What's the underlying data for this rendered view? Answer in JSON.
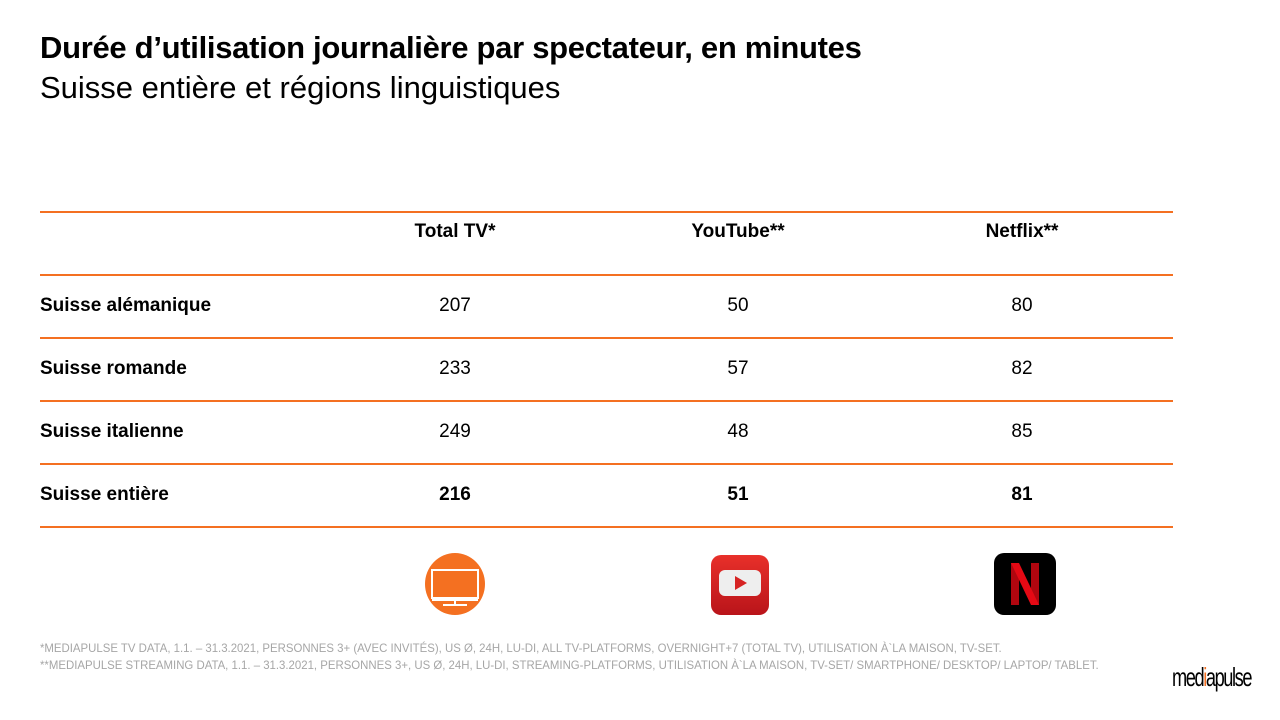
{
  "header": {
    "title": "Durée d’utilisation journalière par spectateur, en minutes",
    "subtitle": "Suisse entière et régions linguistiques"
  },
  "table": {
    "columns": [
      "",
      "Total TV*",
      "YouTube**",
      "Netflix**"
    ],
    "rows": [
      {
        "label": "Suisse alémanique",
        "values": [
          "207",
          "50",
          "80"
        ]
      },
      {
        "label": "Suisse romande",
        "values": [
          "233",
          "57",
          "82"
        ]
      },
      {
        "label": "Suisse italienne",
        "values": [
          "249",
          "48",
          "85"
        ]
      },
      {
        "label": "Suisse entière",
        "values": [
          "216",
          "51",
          "81"
        ],
        "bold": true
      }
    ]
  },
  "icons": [
    "tv-icon",
    "youtube-icon",
    "netflix-icon"
  ],
  "colors": {
    "accent": "#f47021",
    "youtube": "#d62323",
    "netflix": "#e50914"
  },
  "footnotes": [
    "*MEDIAPULSE TV DATA, 1.1. – 31.3.2021, PERSONNES 3+ (AVEC INVITÉS), US Ø, 24H, LU-DI, ALL TV-PLATFORMS, OVERNIGHT+7 (TOTAL TV), UTILISATION À`LA MAISON, TV-SET.",
    "**MEDIAPULSE STREAMING DATA, 1.1. – 31.3.2021, PERSONNES 3+, US Ø, 24H, LU-DI, STREAMING-PLATFORMS, UTILISATION À`LA MAISON, TV-SET/ SMARTPHONE/ DESKTOP/ LAPTOP/ TABLET."
  ],
  "logo": "mediapulse"
}
